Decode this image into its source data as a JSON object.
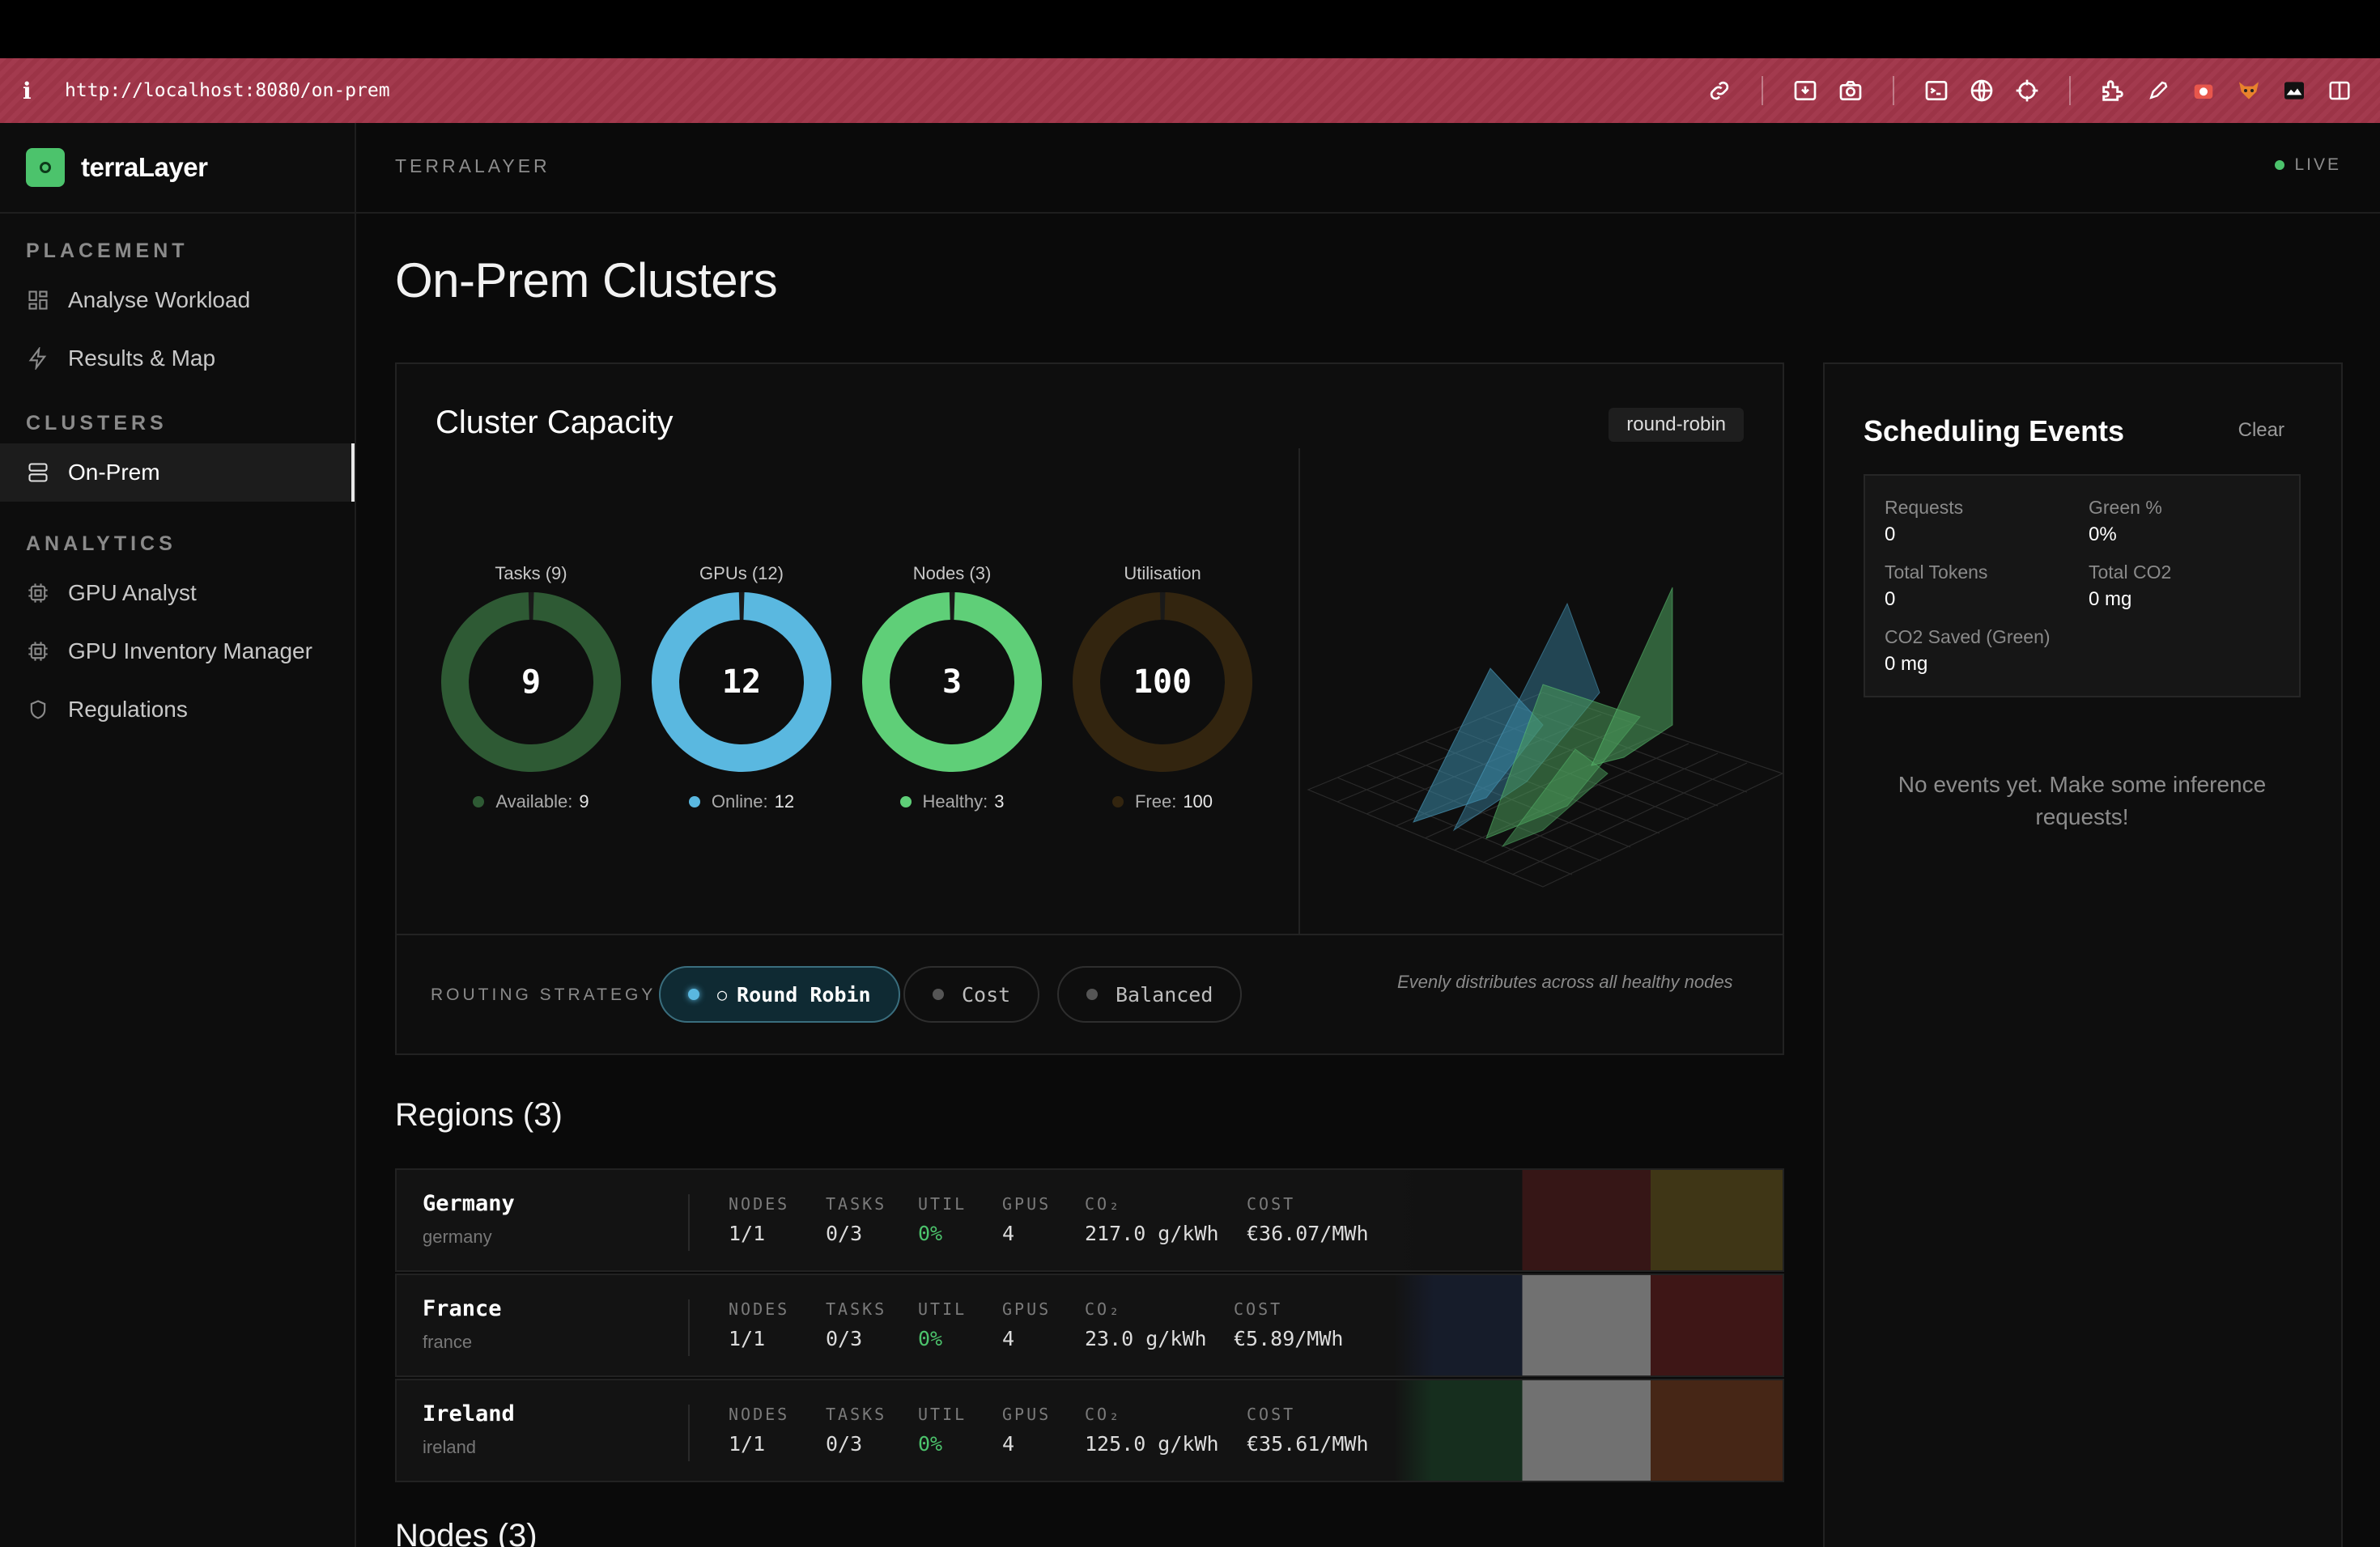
{
  "browser": {
    "url": "http://localhost:8080/on-prem",
    "info_icon": "info-icon",
    "icons": [
      "link-icon",
      "download-icon",
      "camera-icon",
      "terminal-icon",
      "globe-icon",
      "crosshair-icon",
      "extension-icon",
      "eyedropper-icon",
      "record-icon",
      "fox-icon",
      "image-icon",
      "sidebar-icon"
    ]
  },
  "brand": {
    "name": "terraLayer",
    "accent": "#4cc36c"
  },
  "sidebar": {
    "sections": [
      {
        "title": "PLACEMENT",
        "items": [
          {
            "label": "Analyse Workload",
            "icon": "grid-icon"
          },
          {
            "label": "Results & Map",
            "icon": "bolt-icon"
          }
        ]
      },
      {
        "title": "CLUSTERS",
        "items": [
          {
            "label": "On-Prem",
            "icon": "server-icon",
            "active": true
          }
        ]
      },
      {
        "title": "ANALYTICS",
        "items": [
          {
            "label": "GPU Analyst",
            "icon": "chip-icon"
          },
          {
            "label": "GPU Inventory Manager",
            "icon": "chip-icon"
          },
          {
            "label": "Regulations",
            "icon": "shield-icon"
          }
        ]
      }
    ]
  },
  "header": {
    "breadcrumb": "TERRALAYER",
    "status": "LIVE"
  },
  "page": {
    "title": "On-Prem Clusters"
  },
  "capacity": {
    "title": "Cluster Capacity",
    "strategy_badge": "round-robin",
    "gauges": [
      {
        "label": "Tasks (9)",
        "value": "9",
        "legend_key": "Available:",
        "legend_value": "9",
        "color": "#2e5a34",
        "fill": 1.0
      },
      {
        "label": "GPUs (12)",
        "value": "12",
        "legend_key": "Online:",
        "legend_value": "12",
        "color": "#5ab8e0",
        "fill": 1.0
      },
      {
        "label": "Nodes (3)",
        "value": "3",
        "legend_key": "Healthy:",
        "legend_value": "3",
        "color": "#5fcf78",
        "fill": 1.0
      },
      {
        "label": "Utilisation",
        "value": "100",
        "legend_key": "Free:",
        "legend_value": "100",
        "color": "#33250f",
        "fill": 1.0
      }
    ],
    "routing": {
      "label": "ROUTING STRATEGY",
      "options": [
        {
          "label": "Round Robin",
          "prefix": "○",
          "active": true
        },
        {
          "label": "Cost",
          "prefix": "",
          "active": false
        },
        {
          "label": "Balanced",
          "prefix": "",
          "active": false
        }
      ],
      "description": "Evenly distributes across all healthy nodes"
    }
  },
  "regions": {
    "title": "Regions (3)",
    "columns": [
      "NODES",
      "TASKS",
      "UTIL",
      "GPUS",
      "CO₂",
      "COST"
    ],
    "rows": [
      {
        "name": "Germany",
        "slug": "germany",
        "nodes": "1/1",
        "tasks": "0/3",
        "util": "0%",
        "gpus": "4",
        "co2": "217.0 g/kWh",
        "cost": "€36.07/MWh",
        "flag": [
          "#111111",
          "#5a1a1a",
          "#6b5a1a"
        ]
      },
      {
        "name": "France",
        "slug": "france",
        "nodes": "1/1",
        "tasks": "0/3",
        "util": "0%",
        "gpus": "4",
        "co2": "23.0 g/kWh",
        "cost": "€5.89/MWh",
        "flag": [
          "#1a2440",
          "#cfcfcf",
          "#6a1a1a"
        ]
      },
      {
        "name": "Ireland",
        "slug": "ireland",
        "nodes": "1/1",
        "tasks": "0/3",
        "util": "0%",
        "gpus": "4",
        "co2": "125.0 g/kWh",
        "cost": "€35.61/MWh",
        "flag": [
          "#1a4a2a",
          "#cfcfcf",
          "#7a3a1a"
        ]
      }
    ]
  },
  "nodes": {
    "title": "Nodes (3)"
  },
  "events": {
    "title": "Scheduling Events",
    "clear_label": "Clear",
    "stats": [
      {
        "key": "Requests",
        "value": "0"
      },
      {
        "key": "Green %",
        "value": "0%"
      },
      {
        "key": "Total Tokens",
        "value": "0"
      },
      {
        "key": "Total CO2",
        "value": "0 mg"
      },
      {
        "key": "CO2 Saved (Green)",
        "value": "0 mg"
      }
    ],
    "empty_message": "No events yet. Make some inference requests!"
  }
}
